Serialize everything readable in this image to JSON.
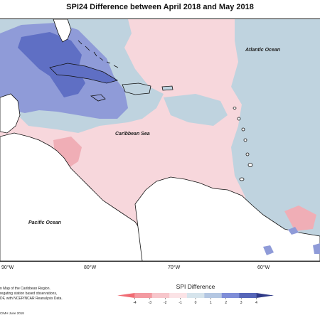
{
  "title": "SPI24 Difference between April 2018 and May 2018",
  "map": {
    "ocean_labels": {
      "atlantic": "Atlantic Ocean",
      "caribbean": "Caribbean Sea",
      "pacific": "Pacific Ocean"
    },
    "longitude_labels": [
      "90°W",
      "80°W",
      "70°W",
      "60°W"
    ],
    "colors": {
      "strong_negative": "#5f6fc4",
      "moderate_negative": "#8f9bd8",
      "weak_negative": "#bfd3df",
      "weak_positive": "#f7d7dc",
      "moderate_positive": "#f0aeb6",
      "land": "#ffffff",
      "coastline": "#111111"
    }
  },
  "legend": {
    "title": "SPI Difference",
    "tick_labels": [
      "-4",
      "-3",
      "-2",
      "-1",
      "0",
      "1",
      "2",
      "3",
      "4"
    ],
    "colors": [
      "#f06c74",
      "#f39aa1",
      "#f7c6cb",
      "#fbe3e6",
      "#d6e4ec",
      "#b4c7e2",
      "#7f8ed8",
      "#5666b8",
      "#2f3a88"
    ]
  },
  "credits": {
    "lines": [
      "n Map of the Caribbean Region.",
      "regating station based observations,",
      "DF, with NCEP/NCAR Reanalysis Data."
    ],
    "stamp": "CIMH June 2018"
  }
}
